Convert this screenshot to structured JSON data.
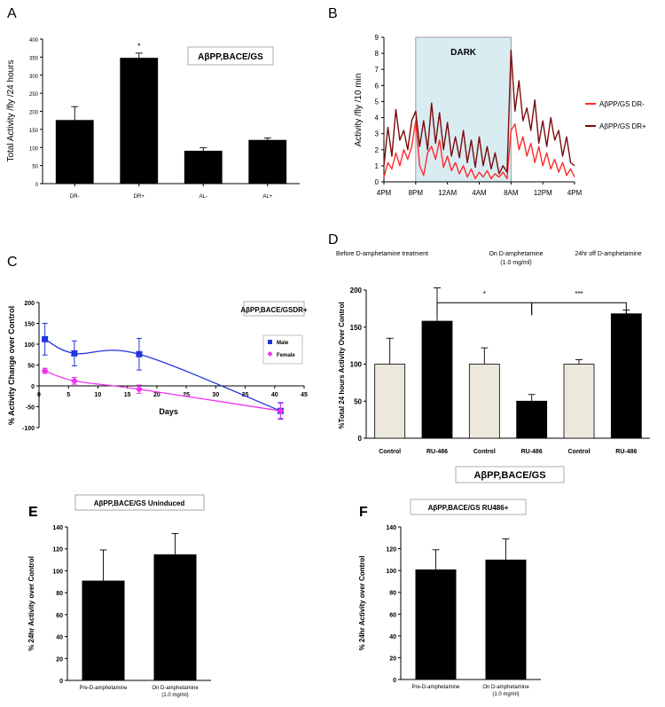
{
  "chart_data": [
    {
      "panel": "A",
      "type": "bar",
      "title": "AβPP,BACE/GS",
      "ylabel": "Total Activity /fly /24 hours",
      "xlabel": "",
      "categories": [
        "DR-",
        "DR+",
        "AL-",
        "AL+"
      ],
      "values": [
        175,
        347,
        90,
        120
      ],
      "errors": [
        38,
        14,
        9,
        6
      ],
      "annotations": [
        "",
        "*",
        "",
        ""
      ],
      "ylim": [
        0,
        400
      ],
      "yticks": [
        "0",
        "50",
        "100",
        "150",
        "200",
        "250",
        "300",
        "350",
        "400"
      ],
      "bar_color": "#000000"
    },
    {
      "panel": "B",
      "type": "line",
      "shaded_label": "DARK",
      "shaded_color": "#d9ecf2",
      "ylabel": "Activity /fly /10 min",
      "xlabel": "",
      "ylim": [
        0,
        9
      ],
      "yticks": [
        "0",
        "1",
        "2",
        "3",
        "4",
        "5",
        "6",
        "7",
        "8",
        "9"
      ],
      "xticks": [
        "4PM",
        "8PM",
        "12AM",
        "4AM",
        "8AM",
        "12PM",
        "4PM"
      ],
      "dark_range_hours": [
        4,
        16
      ],
      "series": [
        {
          "name": "AβPP/GS DR-",
          "color": "#ff2a2a",
          "x": [
            0,
            0.5,
            1,
            1.5,
            2,
            2.5,
            3,
            3.5,
            4,
            4.5,
            5,
            5.5,
            6,
            6.5,
            7,
            7.5,
            8,
            8.5,
            9,
            9.5,
            10,
            10.5,
            11,
            11.5,
            12,
            12.5,
            13,
            13.5,
            14,
            14.5,
            15,
            15.5,
            16,
            16.5,
            17,
            17.5,
            18,
            18.5,
            19,
            19.5,
            20,
            20.5,
            21,
            21.5,
            22,
            22.5,
            23,
            23.5,
            24
          ],
          "values": [
            0.3,
            1.2,
            0.8,
            1.8,
            1.0,
            2.0,
            1.4,
            2.2,
            3.8,
            1.0,
            0.4,
            1.8,
            2.2,
            1.4,
            2.6,
            0.9,
            1.6,
            0.7,
            1.2,
            0.5,
            1.0,
            0.3,
            0.8,
            0.2,
            0.6,
            0.3,
            0.7,
            0.2,
            0.5,
            0.3,
            0.6,
            0.2,
            3.2,
            3.6,
            2.0,
            2.8,
            1.6,
            2.4,
            1.2,
            2.2,
            1.0,
            1.8,
            0.8,
            1.4,
            0.6,
            1.2,
            0.4,
            0.8,
            0.3
          ]
        },
        {
          "name": "AβPP/GS DR+",
          "color": "#7a0a0a",
          "x": [
            0,
            0.5,
            1,
            1.5,
            2,
            2.5,
            3,
            3.5,
            4,
            4.5,
            5,
            5.5,
            6,
            6.5,
            7,
            7.5,
            8,
            8.5,
            9,
            9.5,
            10,
            10.5,
            11,
            11.5,
            12,
            12.5,
            13,
            13.5,
            14,
            14.5,
            15,
            15.5,
            16,
            16.5,
            17,
            17.5,
            18,
            18.5,
            19,
            19.5,
            20,
            20.5,
            21,
            21.5,
            22,
            22.5,
            23,
            23.5,
            24
          ],
          "values": [
            1.0,
            3.4,
            1.6,
            4.5,
            2.6,
            3.2,
            2.0,
            3.8,
            4.4,
            2.2,
            3.8,
            2.0,
            4.9,
            2.4,
            4.3,
            2.0,
            3.7,
            1.6,
            2.8,
            1.5,
            3.2,
            1.2,
            2.6,
            0.9,
            2.8,
            1.0,
            2.2,
            0.8,
            1.8,
            0.5,
            1.0,
            0.6,
            8.2,
            4.4,
            6.3,
            3.8,
            4.6,
            3.2,
            5.1,
            2.4,
            3.8,
            2.2,
            4.0,
            2.6,
            3.2,
            1.6,
            2.8,
            1.2,
            1.0
          ]
        }
      ]
    },
    {
      "panel": "C",
      "type": "line",
      "title": "AβPP,BACE/GSDR+",
      "xlabel": "Days",
      "ylabel": "% Activity Change over Control",
      "xlim": [
        0,
        45
      ],
      "ylim": [
        -100,
        200
      ],
      "xticks": [
        "0",
        "5",
        "10",
        "15",
        "20",
        "25",
        "30",
        "35",
        "40",
        "45"
      ],
      "yticks": [
        "-100",
        "-50",
        "0",
        "50",
        "100",
        "150",
        "200"
      ],
      "series": [
        {
          "name": "Male",
          "color": "#2233dd",
          "marker": "square",
          "x": [
            1,
            6,
            17,
            41
          ],
          "values": [
            112,
            78,
            76,
            -60
          ],
          "errors": [
            38,
            30,
            38,
            20
          ]
        },
        {
          "name": "Female",
          "color": "#ee33ee",
          "marker": "diamond",
          "x": [
            1,
            6,
            17,
            41
          ],
          "values": [
            36,
            12,
            -8,
            -60
          ],
          "errors": [
            6,
            8,
            10,
            18
          ]
        }
      ]
    },
    {
      "panel": "D",
      "type": "bar",
      "title": "AβPP,BACE/GS",
      "group_labels": [
        "Before D-amphetamine treatment",
        "On D-amphetamine",
        "(1.0 mg/ml)",
        "24hr off D-amphetamine"
      ],
      "ylabel": "%Total 24 hours Activity Over Control",
      "categories": [
        "Control",
        "RU-486",
        "Control",
        "RU-486",
        "Control",
        "RU-486"
      ],
      "values": [
        100,
        158,
        100,
        50,
        100,
        168
      ],
      "errors": [
        35,
        45,
        22,
        9,
        6,
        5
      ],
      "colors": [
        "#ece8dc",
        "#000000",
        "#ece8dc",
        "#000000",
        "#ece8dc",
        "#000000"
      ],
      "significance": [
        "*",
        "***"
      ],
      "ylim": [
        0,
        200
      ],
      "yticks": [
        "0",
        "50",
        "100",
        "150",
        "200"
      ]
    },
    {
      "panel": "E",
      "type": "bar",
      "title": "AβPP,BACE/GS Uninduced",
      "ylabel": "% 24hr Activity over Control",
      "categories": [
        "Pre-D-amphetamine",
        "On D-amphetamine"
      ],
      "category_sublabels": [
        "",
        "(1.0 mg/ml)"
      ],
      "values": [
        91,
        115
      ],
      "errors": [
        28,
        19
      ],
      "ylim": [
        0,
        140
      ],
      "yticks": [
        "0",
        "20",
        "40",
        "60",
        "80",
        "100",
        "120",
        "140"
      ]
    },
    {
      "panel": "F",
      "type": "bar",
      "title": "AβPP,BACE/GS RU486+",
      "ylabel": "% 24hr Activity over Control",
      "categories": [
        "Pre-D-amphetamine",
        "On D-amphetamine"
      ],
      "category_sublabels": [
        "",
        "(1.0 mg/ml)"
      ],
      "values": [
        101,
        110
      ],
      "errors": [
        18,
        19
      ],
      "ylim": [
        0,
        140
      ],
      "yticks": [
        "0",
        "20",
        "40",
        "60",
        "80",
        "100",
        "120",
        "140"
      ]
    }
  ]
}
